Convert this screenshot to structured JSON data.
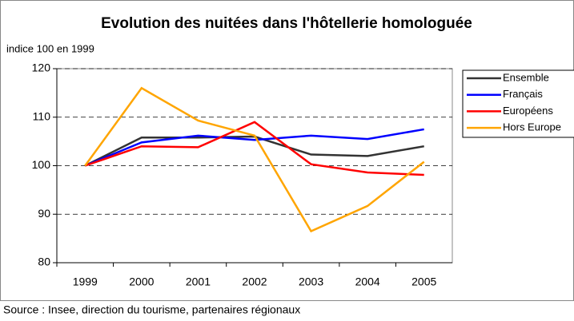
{
  "chart_data": {
    "type": "line",
    "title": "Evolution des nuitées dans l'hôtellerie homologuée",
    "y_label": "indice 100 en 1999",
    "source": "Source : Insee, direction du tourisme, partenaires régionaux",
    "categories": [
      "1999",
      "2000",
      "2001",
      "2002",
      "2003",
      "2004",
      "2005"
    ],
    "series": [
      {
        "name": "Ensemble",
        "color": "#333333",
        "values": [
          100,
          105.8,
          105.8,
          106,
          102.3,
          102,
          104
        ]
      },
      {
        "name": "Français",
        "color": "#0000ff",
        "values": [
          100,
          104.8,
          106.2,
          105.3,
          106.2,
          105.5,
          107.5
        ]
      },
      {
        "name": "Européens",
        "color": "#ff0000",
        "values": [
          100,
          104,
          103.8,
          109,
          100.3,
          98.6,
          98.1
        ]
      },
      {
        "name": "Hors Europe",
        "color": "#ffa500",
        "values": [
          100,
          116,
          109.3,
          106.2,
          86.5,
          91.7,
          100.8
        ]
      }
    ],
    "ylim": [
      80,
      120
    ],
    "yticks": [
      80,
      90,
      100,
      110,
      120
    ],
    "grid": true,
    "legend": "right"
  }
}
